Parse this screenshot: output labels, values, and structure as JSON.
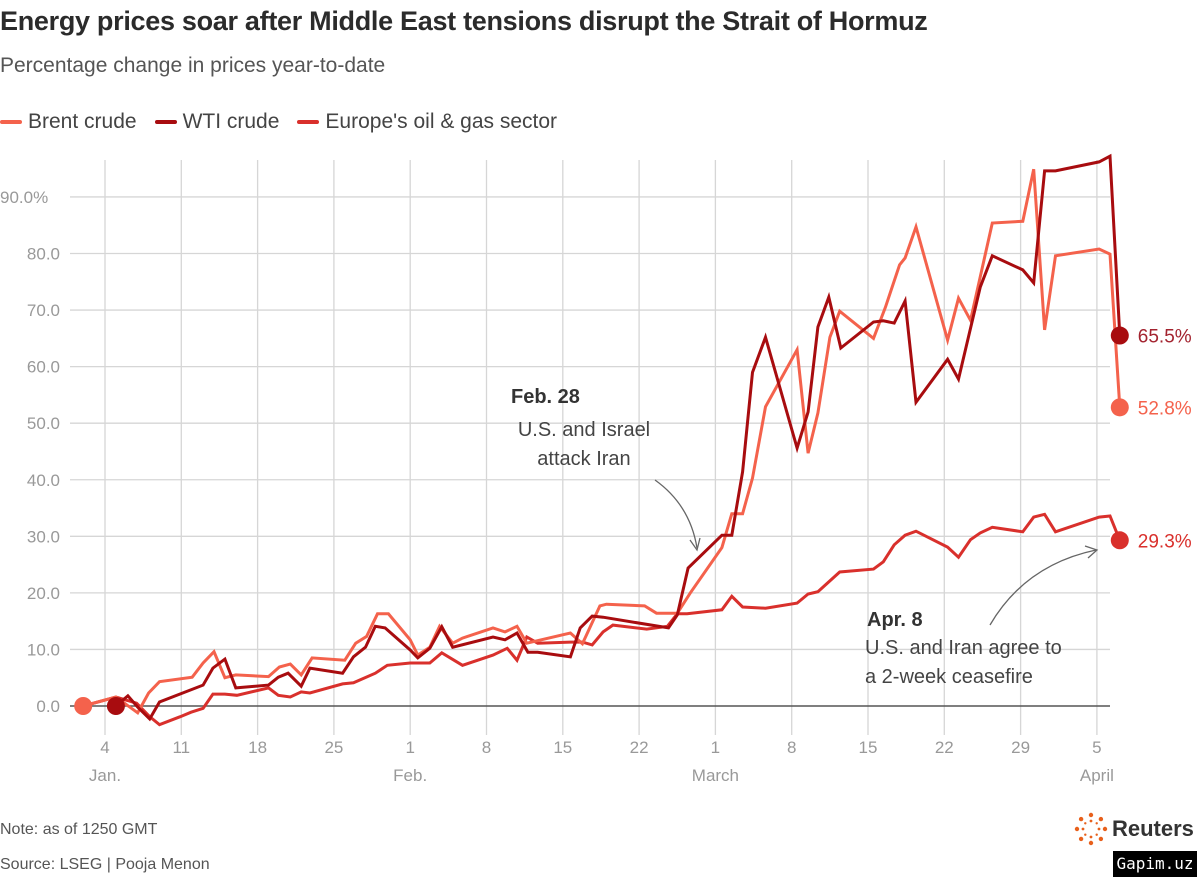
{
  "title": "Energy prices soar after Middle East tensions disrupt the Strait of Hormuz",
  "subtitle": "Percentage change in prices year-to-date",
  "note": "Note: as of 1250 GMT",
  "source": "Source: LSEG | Pooja Menon",
  "logo_text": "Reuters",
  "watermark": "Gapim.uz",
  "chart_data": {
    "type": "line",
    "title": "Energy prices soar after Middle East tensions disrupt the Strait of Hormuz",
    "subtitle": "Percentage change in prices year-to-date",
    "xlabel": "",
    "ylabel": "",
    "x_units": "day of year 2026 (Jan 1 = 1)",
    "xlim": [
      0,
      97
    ],
    "ylim": [
      -5,
      95
    ],
    "grid": true,
    "legend_placement": "top-left",
    "y_ticks": [
      0,
      10,
      20,
      30,
      40,
      50,
      60,
      70,
      80,
      90
    ],
    "y_tick_labels": [
      "0.0",
      "10.0",
      "20.0",
      "30.0",
      "40.0",
      "50.0",
      "60.0",
      "70.0",
      "80.0",
      "90.0%"
    ],
    "x_ticks": [
      4,
      11,
      18,
      25,
      32,
      39,
      46,
      53,
      60,
      67,
      74,
      81,
      88,
      95
    ],
    "x_tick_labels": [
      "4",
      "11",
      "18",
      "25",
      "1",
      "8",
      "15",
      "22",
      "1",
      "8",
      "15",
      "22",
      "29",
      "5"
    ],
    "month_labels": [
      {
        "day": 4,
        "label": "Jan."
      },
      {
        "day": 32,
        "label": "Feb."
      },
      {
        "day": 60,
        "label": "March"
      },
      {
        "day": 95,
        "label": "April"
      }
    ],
    "series": [
      {
        "name": "Brent crude",
        "color": "#f4624c",
        "end_label": "52.8%",
        "start_marker": true,
        "points": [
          [
            2,
            0
          ],
          [
            5,
            1.6
          ],
          [
            7,
            -1.2
          ],
          [
            8,
            2.3
          ],
          [
            9,
            4.3
          ],
          [
            12,
            5.1
          ],
          [
            13,
            7.6
          ],
          [
            14,
            9.6
          ],
          [
            15,
            5.0
          ],
          [
            16,
            5.5
          ],
          [
            19,
            5.2
          ],
          [
            20,
            6.9
          ],
          [
            21,
            7.4
          ],
          [
            22,
            5.5
          ],
          [
            23,
            8.5
          ],
          [
            26,
            8.1
          ],
          [
            27,
            11.1
          ],
          [
            28,
            12.3
          ],
          [
            29,
            16.3
          ],
          [
            30,
            16.3
          ],
          [
            32,
            11.7
          ],
          [
            32.7,
            9.0
          ],
          [
            33.8,
            10.4
          ],
          [
            34.7,
            14.1
          ],
          [
            35.9,
            11.1
          ],
          [
            36.8,
            12.0
          ],
          [
            39.6,
            13.8
          ],
          [
            40.7,
            13.1
          ],
          [
            41.8,
            14.1
          ],
          [
            42.7,
            11.1
          ],
          [
            46.7,
            12.9
          ],
          [
            47.8,
            11.0
          ],
          [
            49.4,
            17.7
          ],
          [
            50,
            18.0
          ],
          [
            53.5,
            17.7
          ],
          [
            54.6,
            16.4
          ],
          [
            56.5,
            16.4
          ],
          [
            57.7,
            20.0
          ],
          [
            60.6,
            28.0
          ],
          [
            61.5,
            34.0
          ],
          [
            62.5,
            34.0
          ],
          [
            63.4,
            40.3
          ],
          [
            64.6,
            52.9
          ],
          [
            67.5,
            63.0
          ],
          [
            68.5,
            44.7
          ],
          [
            69.4,
            51.8
          ],
          [
            70.5,
            65.2
          ],
          [
            71.4,
            69.8
          ],
          [
            74.5,
            65.0
          ],
          [
            75.6,
            70.5
          ],
          [
            76.9,
            78.0
          ],
          [
            77.4,
            79.2
          ],
          [
            78.4,
            84.7
          ],
          [
            81.3,
            64.7
          ],
          [
            82.3,
            72.1
          ],
          [
            83.4,
            68.2
          ],
          [
            85.4,
            85.4
          ],
          [
            88.2,
            85.7
          ],
          [
            89.2,
            94.9
          ],
          [
            90.2,
            66.5
          ],
          [
            91.2,
            79.6
          ],
          [
            95.2,
            80.8
          ],
          [
            96.2,
            79.9
          ],
          [
            97.1,
            52.8
          ]
        ]
      },
      {
        "name": "WTI crude",
        "color": "#a80c0f",
        "end_label": "65.5%",
        "start_marker": true,
        "points": [
          [
            5,
            0
          ],
          [
            6.1,
            1.8
          ],
          [
            7,
            -0.2
          ],
          [
            8.1,
            -2.3
          ],
          [
            9,
            0.7
          ],
          [
            13,
            3.7
          ],
          [
            13.9,
            6.7
          ],
          [
            15,
            8.3
          ],
          [
            16,
            3.2
          ],
          [
            19,
            3.7
          ],
          [
            19.9,
            5.1
          ],
          [
            20.8,
            5.8
          ],
          [
            22,
            3.5
          ],
          [
            22.8,
            6.7
          ],
          [
            25.8,
            5.8
          ],
          [
            26.8,
            8.7
          ],
          [
            27.9,
            10.4
          ],
          [
            28.8,
            14.1
          ],
          [
            29.7,
            13.8
          ],
          [
            32,
            9.9
          ],
          [
            32.7,
            8.5
          ],
          [
            33.8,
            10.2
          ],
          [
            34.9,
            14.0
          ],
          [
            35.9,
            10.4
          ],
          [
            39.6,
            12.2
          ],
          [
            40.7,
            11.7
          ],
          [
            41.8,
            12.9
          ],
          [
            42.8,
            9.5
          ],
          [
            43.7,
            9.5
          ],
          [
            46.7,
            8.7
          ],
          [
            47.6,
            13.8
          ],
          [
            48.7,
            15.9
          ],
          [
            49.7,
            15.7
          ],
          [
            55.7,
            13.8
          ],
          [
            56.5,
            16.1
          ],
          [
            57.5,
            24.4
          ],
          [
            60.6,
            30.2
          ],
          [
            61.5,
            30.2
          ],
          [
            62.5,
            41.4
          ],
          [
            63.4,
            59.0
          ],
          [
            64.6,
            65.2
          ],
          [
            67.5,
            45.6
          ],
          [
            68.5,
            52.0
          ],
          [
            69.4,
            67.0
          ],
          [
            70.4,
            72.3
          ],
          [
            71.5,
            63.3
          ],
          [
            74.5,
            67.9
          ],
          [
            75.4,
            68.1
          ],
          [
            76.4,
            67.7
          ],
          [
            77.4,
            71.6
          ],
          [
            78.4,
            53.7
          ],
          [
            81.3,
            61.3
          ],
          [
            82.3,
            57.8
          ],
          [
            84.3,
            74.1
          ],
          [
            85.4,
            79.6
          ],
          [
            88.2,
            77.1
          ],
          [
            89.2,
            74.8
          ],
          [
            90.2,
            94.6
          ],
          [
            91.2,
            94.6
          ],
          [
            95.2,
            96.2
          ],
          [
            96.2,
            97.2
          ],
          [
            97.1,
            65.5
          ]
        ]
      },
      {
        "name": "Europe's oil & gas sector",
        "color": "#d9302c",
        "end_label": "29.3%",
        "start_marker": false,
        "points": [
          [
            2,
            0
          ],
          [
            5,
            1.6
          ],
          [
            6.9,
            0.5
          ],
          [
            8.1,
            -1.9
          ],
          [
            9,
            -3.3
          ],
          [
            10.9,
            -1.9
          ],
          [
            11.9,
            -1.1
          ],
          [
            13,
            -0.4
          ],
          [
            13.9,
            2.1
          ],
          [
            15,
            2.1
          ],
          [
            16.1,
            1.9
          ],
          [
            19,
            3.2
          ],
          [
            19.9,
            1.9
          ],
          [
            21,
            1.6
          ],
          [
            22,
            2.5
          ],
          [
            22.8,
            2.3
          ],
          [
            25.8,
            3.9
          ],
          [
            26.8,
            4.1
          ],
          [
            28.8,
            5.8
          ],
          [
            29.9,
            7.2
          ],
          [
            32,
            7.6
          ],
          [
            33.8,
            7.6
          ],
          [
            34.9,
            9.4
          ],
          [
            36.8,
            7.2
          ],
          [
            39.6,
            9.0
          ],
          [
            40.9,
            10.2
          ],
          [
            41.8,
            8.1
          ],
          [
            42.7,
            12.2
          ],
          [
            43.7,
            11.1
          ],
          [
            46.7,
            11.3
          ],
          [
            47.8,
            11.3
          ],
          [
            48.7,
            10.8
          ],
          [
            49.7,
            13.1
          ],
          [
            50.6,
            14.3
          ],
          [
            53.7,
            13.6
          ],
          [
            55.6,
            14.1
          ],
          [
            56.5,
            16.3
          ],
          [
            57.4,
            16.3
          ],
          [
            60.6,
            17.0
          ],
          [
            61.5,
            19.4
          ],
          [
            62.5,
            17.5
          ],
          [
            64.6,
            17.3
          ],
          [
            67.5,
            18.2
          ],
          [
            68.5,
            19.8
          ],
          [
            69.4,
            20.2
          ],
          [
            71.4,
            23.7
          ],
          [
            74.5,
            24.2
          ],
          [
            75.4,
            25.5
          ],
          [
            76.4,
            28.5
          ],
          [
            77.4,
            30.2
          ],
          [
            78.4,
            30.9
          ],
          [
            81.3,
            28.1
          ],
          [
            82.3,
            26.3
          ],
          [
            83.4,
            29.4
          ],
          [
            84.3,
            30.6
          ],
          [
            85.4,
            31.6
          ],
          [
            88.2,
            30.8
          ],
          [
            89.2,
            33.4
          ],
          [
            90.2,
            33.9
          ],
          [
            91.2,
            30.8
          ],
          [
            95.2,
            33.4
          ],
          [
            96.2,
            33.6
          ],
          [
            97.1,
            29.3
          ]
        ]
      }
    ],
    "annotations": [
      {
        "heading": "Feb. 28",
        "lines": [
          "U.S. and Israel",
          "attack Iran"
        ],
        "target": [
          58,
          27
        ]
      },
      {
        "heading": "Apr. 8",
        "lines": [
          "U.S. and Iran agree to",
          "a 2-week ceasefire"
        ],
        "target": [
          96,
          28
        ]
      }
    ]
  }
}
